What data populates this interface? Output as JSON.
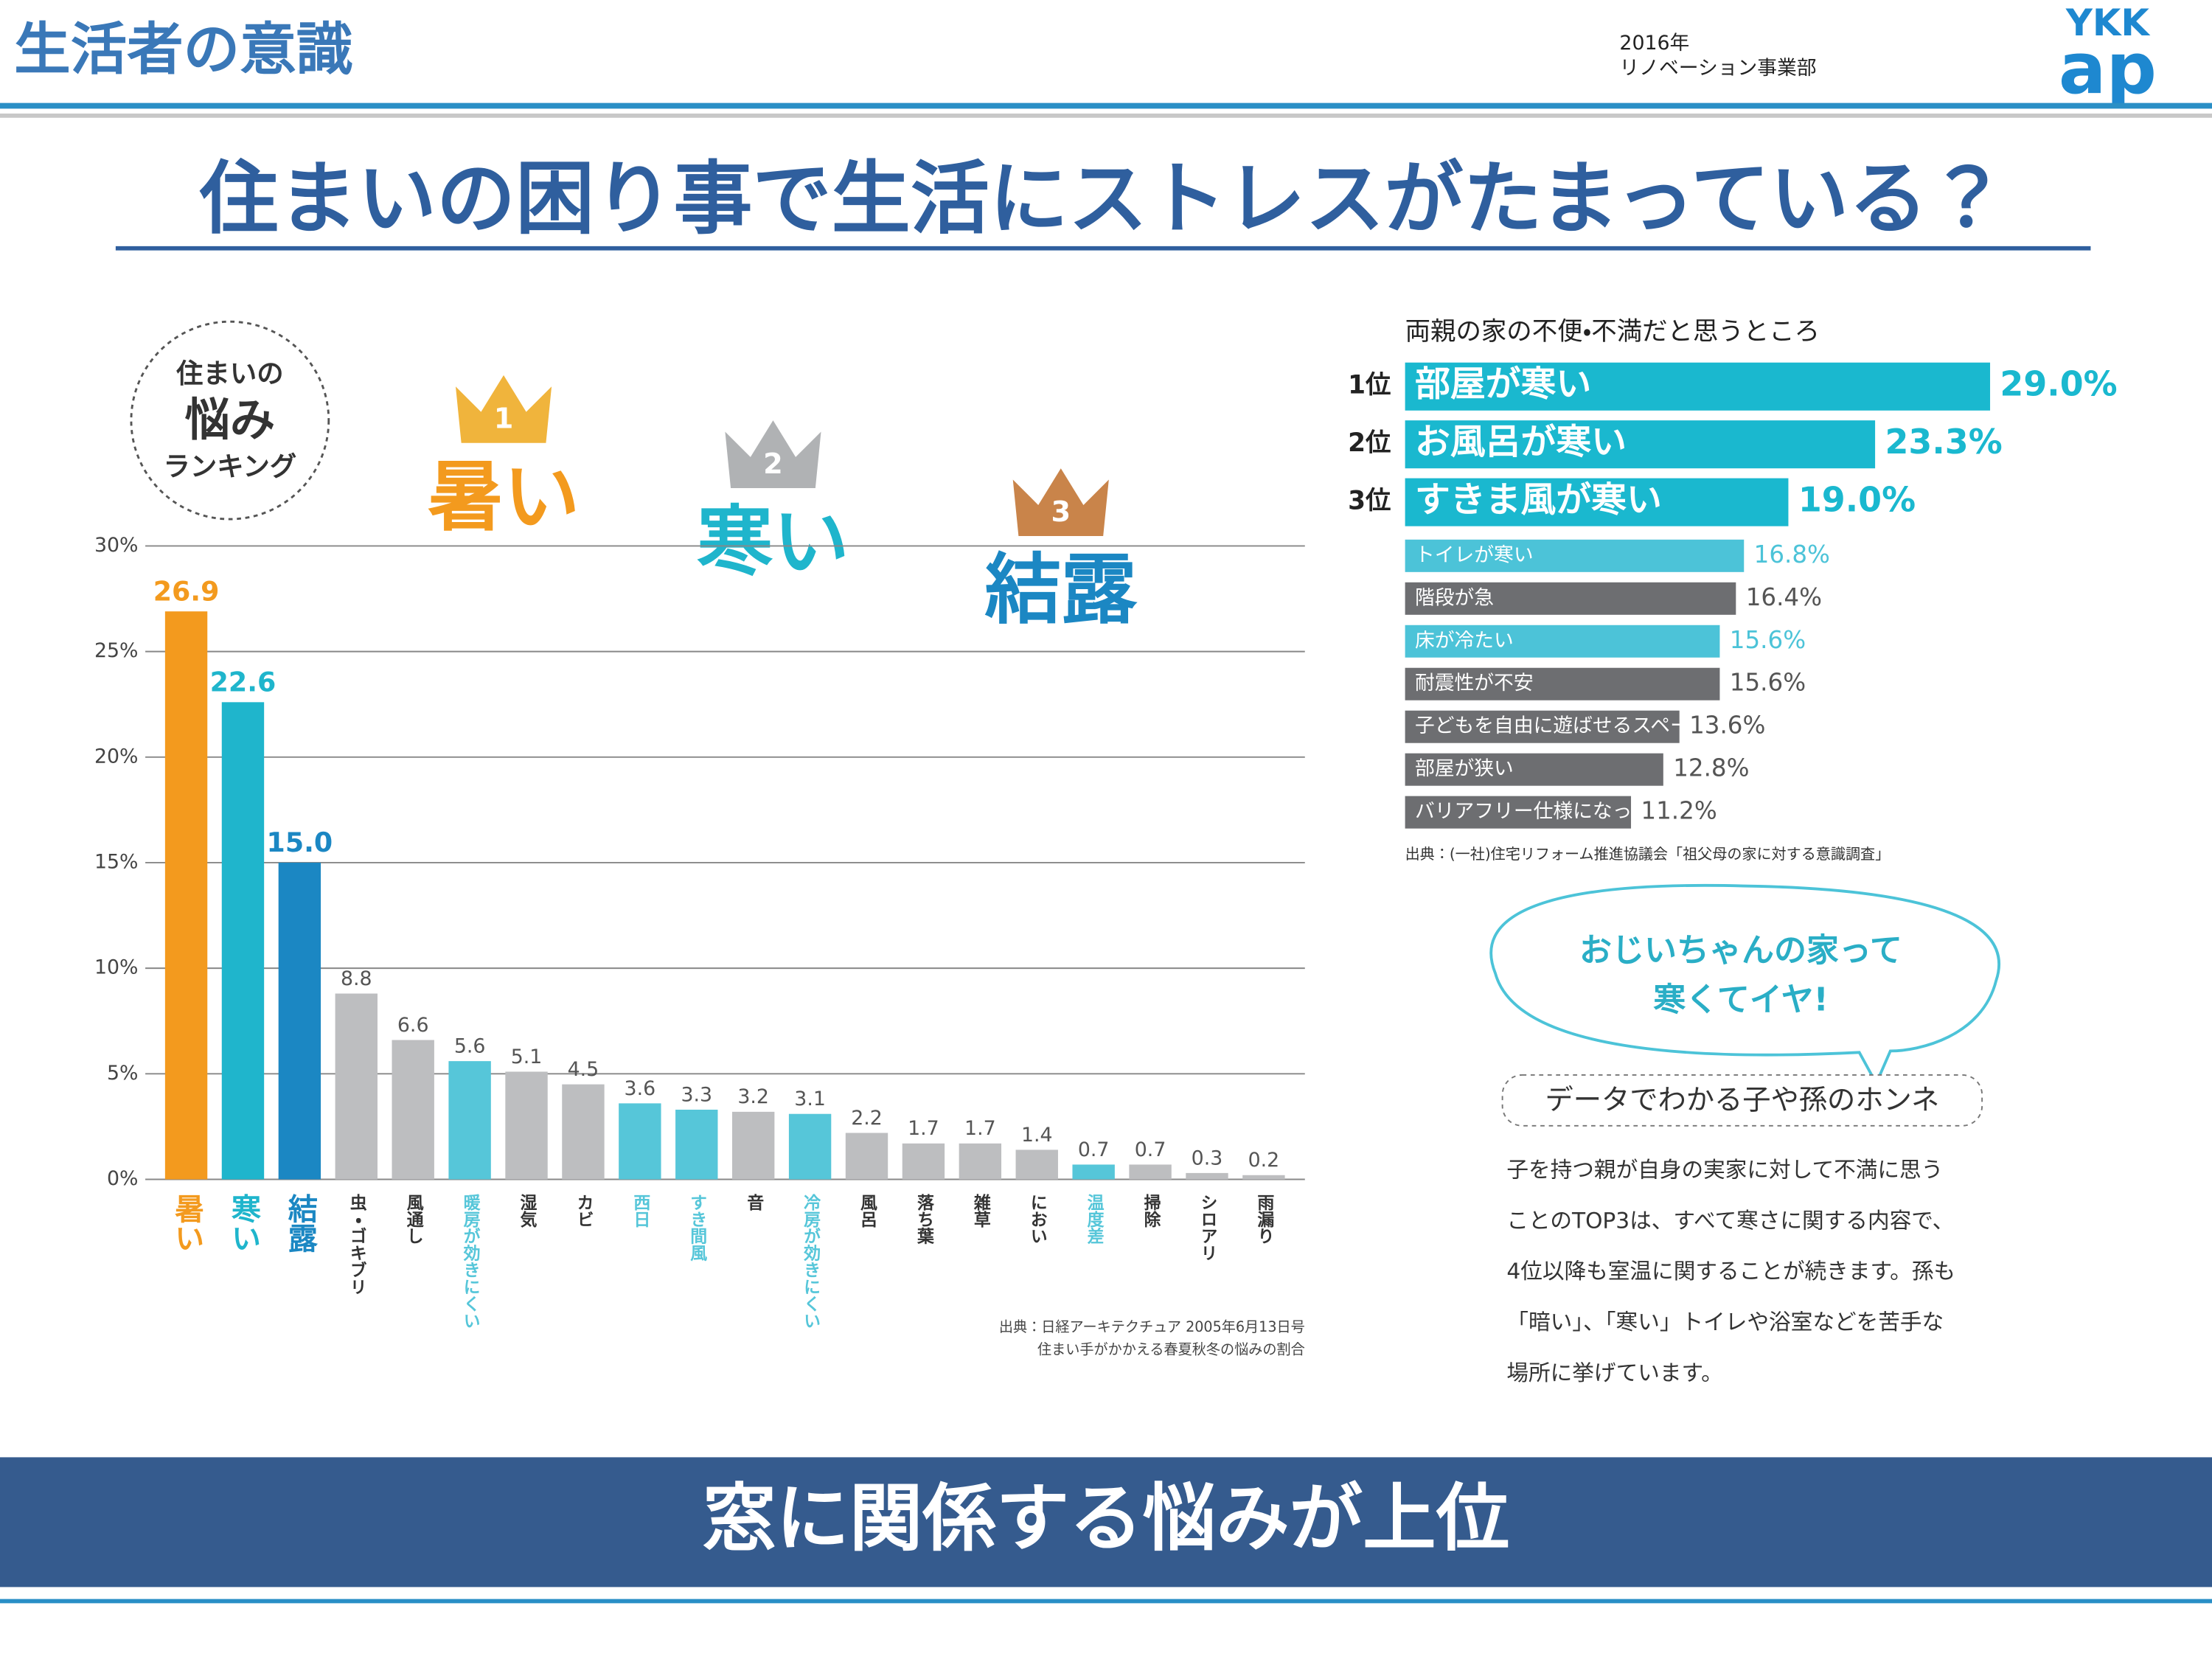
{
  "header": {
    "title": "生活者の意識",
    "year": "2016年",
    "department": "リノベーション事業部",
    "logo_top": "YKK",
    "logo_bottom": "ap"
  },
  "headline": "住まいの困り事で生活にストレスがたまっている？",
  "badge": [
    "住まいの",
    "悩み",
    "ランキング"
  ],
  "ranking": [
    {
      "rank": "1",
      "label": "暑い"
    },
    {
      "rank": "2",
      "label": "寒い"
    },
    {
      "rank": "3",
      "label": "結露"
    }
  ],
  "chart_data": [
    {
      "type": "bar",
      "categories": [
        "暑い",
        "寒い",
        "結露",
        "虫・ゴキブリ",
        "風通し",
        "暖房が効きにくい",
        "湿気",
        "カビ",
        "西日",
        "すき間風",
        "音",
        "冷房が効きにくい",
        "風呂",
        "落ち葉",
        "雑草",
        "におい",
        "温度差",
        "掃除",
        "シロアリ",
        "雨漏り"
      ],
      "values": [
        26.9,
        22.6,
        15.0,
        8.8,
        6.6,
        5.6,
        5.1,
        4.5,
        3.6,
        3.3,
        3.2,
        3.1,
        2.2,
        1.7,
        1.7,
        1.4,
        0.7,
        0.7,
        0.3,
        0.2
      ],
      "value_labels": [
        "26.9",
        "22.6",
        "15.0",
        "8.8",
        "6.6",
        "5.6",
        "5.1",
        "4.5",
        "3.6",
        "3.3",
        "3.2",
        "3.1",
        "2.2",
        "1.7",
        "1.7",
        "1.4",
        "0.7",
        "0.7",
        "0.3",
        "0.2"
      ],
      "colors": [
        "#f39a1e",
        "#1fb5cc",
        "#1b87c3",
        "#bdbec0",
        "#bdbec0",
        "#56c6d9",
        "#bdbec0",
        "#bdbec0",
        "#56c6d9",
        "#56c6d9",
        "#bdbec0",
        "#56c6d9",
        "#bdbec0",
        "#bdbec0",
        "#bdbec0",
        "#bdbec0",
        "#56c6d9",
        "#bdbec0",
        "#bdbec0",
        "#bdbec0"
      ],
      "ylim": [
        0,
        30
      ],
      "yticks": [
        {
          "value": 0,
          "label": "0%"
        },
        {
          "value": 5,
          "label": "5%"
        },
        {
          "value": 10,
          "label": "10%"
        },
        {
          "value": 15,
          "label": "15%"
        },
        {
          "value": 20,
          "label": "20%"
        },
        {
          "value": 25,
          "label": "25%"
        },
        {
          "value": 30,
          "label": "30%"
        }
      ],
      "grid": true,
      "source": [
        "出典：日経アーキテクチュア 2005年6月13日号",
        "住まい手がかかえる春夏秋冬の悩みの割合"
      ]
    },
    {
      "type": "hbar",
      "title": "両親の家の不便・不満だと思うところ",
      "ranks": [
        "1位",
        "2位",
        "3位"
      ],
      "categories": [
        "部屋が寒い",
        "お風呂が寒い",
        "すきま風が寒い",
        "トイレが寒い",
        "階段が急",
        "床が冷たい",
        "耐震性が不安",
        "子どもを自由に遊ばせるスペースがない",
        "部屋が狭い",
        "バリアフリー仕様になっていない"
      ],
      "values": [
        29.0,
        23.3,
        19.0,
        16.8,
        16.4,
        15.6,
        15.6,
        13.6,
        12.8,
        11.2
      ],
      "value_labels": [
        "29.0%",
        "23.3%",
        "19.0%",
        "16.8%",
        "16.4%",
        "15.6%",
        "15.6%",
        "13.6%",
        "12.8%",
        "11.2%"
      ],
      "colors": [
        "#1ab8cf",
        "#1ab8cf",
        "#1ab8cf",
        "#4cc3d8",
        "#6d6e71",
        "#4cc3d8",
        "#6d6e71",
        "#6d6e71",
        "#6d6e71",
        "#6d6e71"
      ],
      "source": "出典：(一社)住宅リフォーム推進協議会「祖父母の家に対する意識調査」"
    }
  ],
  "bubble": [
    "おじいちゃんの家って",
    "寒くてイヤ!"
  ],
  "note": {
    "heading": "データでわかる子や孫のホンネ",
    "lines": [
      "子を持つ親が自身の実家に対して不満に思う",
      "ことのTOP3は、すべて寒さに関する内容で、",
      "4位以降も室温に関することが続きます。孫も",
      "「暗い」、「寒い」トイレや浴室などを苦手な",
      "場所に挙げています。"
    ]
  },
  "footer": "窓に関係する悩みが上位"
}
